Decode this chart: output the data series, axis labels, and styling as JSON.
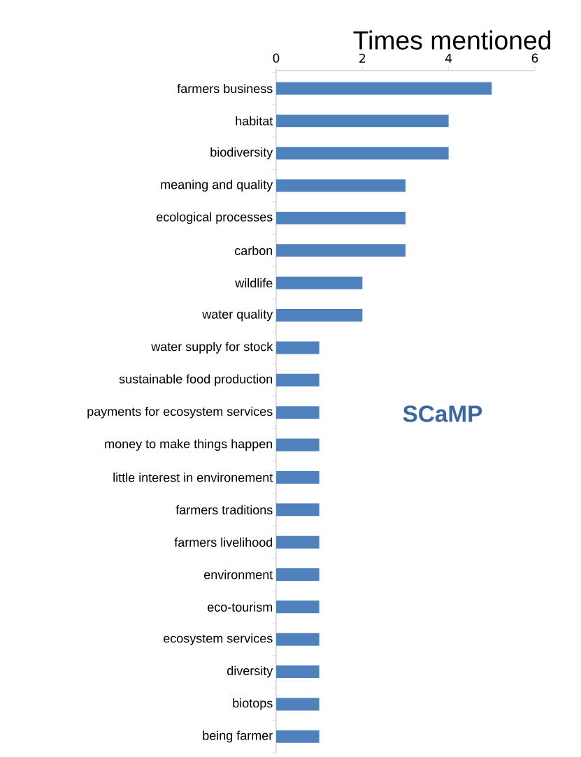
{
  "chart_data": {
    "type": "bar",
    "orientation": "horizontal",
    "title": "Times mentioned",
    "categories": [
      "farmers business",
      "habitat",
      "biodiversity",
      "meaning and quality",
      "ecological processes",
      "carbon",
      "wildlife",
      "water quality",
      "water supply for stock",
      "sustainable food production",
      "payments for ecosystem services",
      "money to make things happen",
      "little interest in environement",
      "farmers traditions",
      "farmers livelihood",
      "environment",
      "eco-tourism",
      "ecosystem services",
      "diversity",
      "biotops",
      "being farmer"
    ],
    "values": [
      5,
      4,
      4,
      3,
      3,
      3,
      2,
      2,
      1,
      1,
      1,
      1,
      1,
      1,
      1,
      1,
      1,
      1,
      1,
      1,
      1
    ],
    "color": "#4f81bd",
    "xlim": [
      0,
      6
    ],
    "xticks": [
      0,
      2,
      4,
      6
    ],
    "annotations": [
      "SCaMP"
    ]
  }
}
